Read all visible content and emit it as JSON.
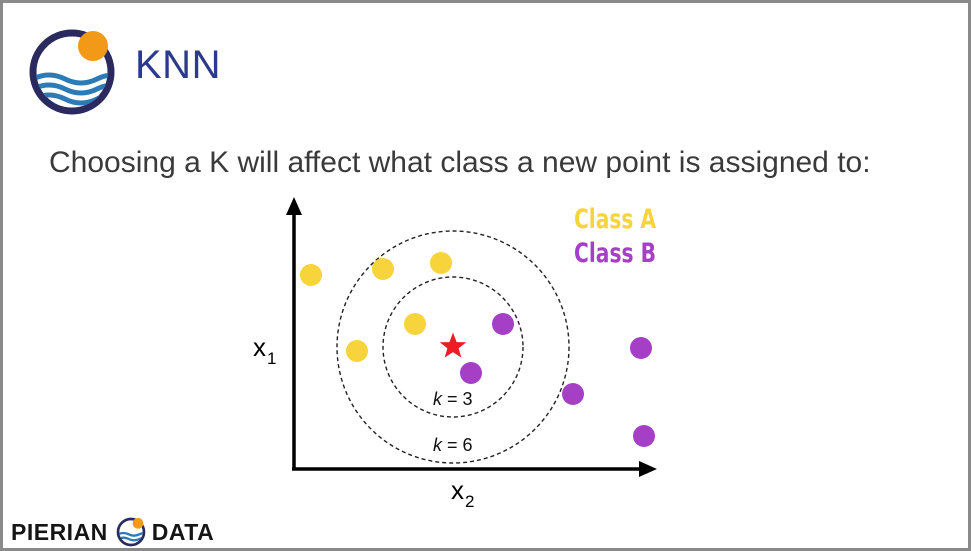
{
  "slide": {
    "title": "KNN",
    "subtitle": "Choosing a K will affect what class a new point is assigned to:"
  },
  "diagram": {
    "y_axis_label": "x",
    "y_axis_subscript": "1",
    "x_axis_label": "x",
    "x_axis_subscript": "2",
    "legend": [
      {
        "label": "Class A",
        "color": "#f7d33c"
      },
      {
        "label": "Class B",
        "color": "#a53fc6"
      }
    ],
    "circle_labels": {
      "inner": {
        "k": "k",
        "rest": " = 3"
      },
      "outer": {
        "k": "k",
        "rest": " = 6"
      }
    },
    "new_point": {
      "icon": "star-icon",
      "color": "#ee1c25"
    }
  },
  "footer": {
    "left_text": "PIERIAN",
    "right_text": "DATA"
  },
  "colors": {
    "title": "#2b3a8c",
    "logo_ring": "#2b2a5e",
    "logo_sun": "#f29a17",
    "logo_waves": "#2d7bb6"
  }
}
